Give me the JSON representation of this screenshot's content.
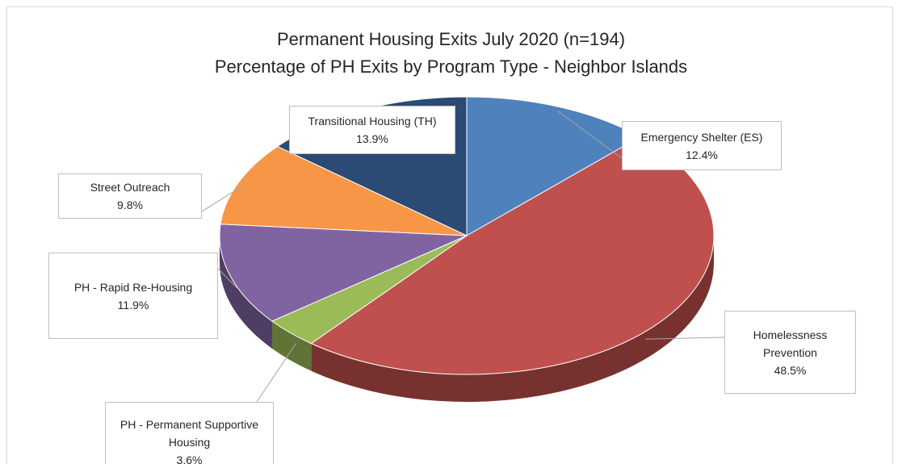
{
  "chart_data": {
    "type": "pie",
    "title": "Permanent Housing Exits July 2020 (n=194)",
    "subtitle": "Percentage of PH Exits by Program Type - Neighbor Islands",
    "categories": [
      "Emergency Shelter (ES)",
      "Homelessness Prevention",
      "PH - Permanent Supportive Housing",
      "PH - Rapid Re-Housing",
      "Street Outreach",
      "Transitional Housing (TH)"
    ],
    "values": [
      12.4,
      48.5,
      3.6,
      11.9,
      9.8,
      13.9
    ],
    "value_labels": [
      "12.4%",
      "48.5%",
      "3.6%",
      "11.9%",
      "9.8%",
      "13.9%"
    ],
    "colors": [
      "#4f81bd",
      "#c0504d",
      "#9bbb59",
      "#8064a2",
      "#f79646",
      "#2b4a74"
    ]
  }
}
